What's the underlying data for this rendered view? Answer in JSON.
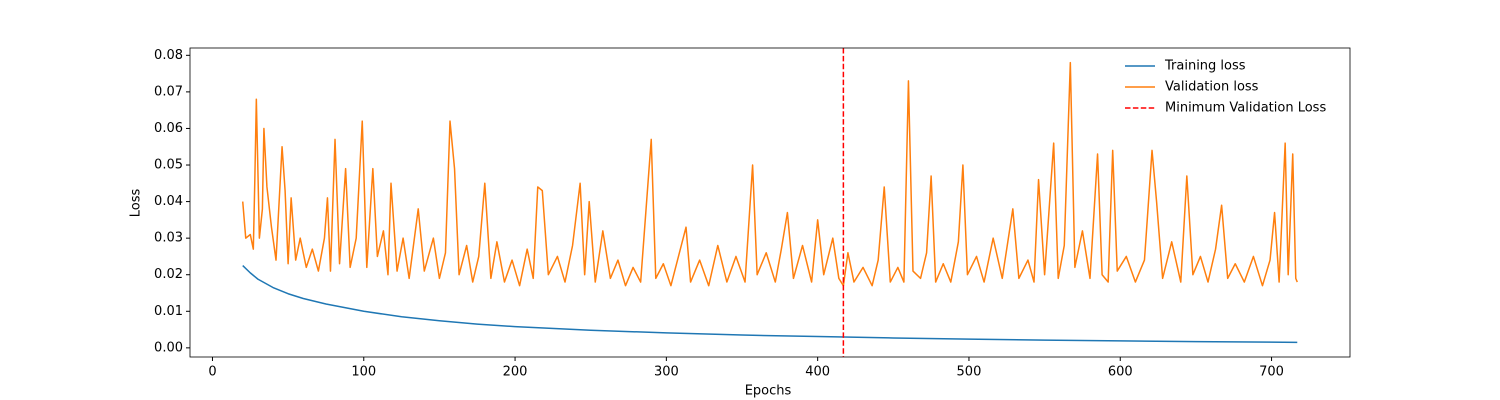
{
  "chart_data": {
    "type": "line",
    "xlabel": "Epochs",
    "ylabel": "Loss",
    "xlim": [
      -14.85,
      751.85
    ],
    "ylim": [
      -0.0025,
      0.082
    ],
    "xticks": [
      0,
      100,
      200,
      300,
      400,
      500,
      600,
      700
    ],
    "yticks": [
      {
        "value": 0,
        "label": "0.00"
      },
      0.01,
      0.02,
      0.03,
      0.04,
      0.05,
      0.06,
      0.07,
      0.08
    ],
    "legend": "upper right",
    "series": [
      {
        "name": "Training loss",
        "color": "#1f77b4",
        "x": [
          20,
          25,
          30,
          40,
          50,
          60,
          75,
          100,
          125,
          150,
          175,
          200,
          250,
          300,
          350,
          400,
          450,
          500,
          550,
          600,
          650,
          717
        ],
        "values": [
          0.0225,
          0.0205,
          0.0188,
          0.0165,
          0.0148,
          0.0135,
          0.012,
          0.01,
          0.0085,
          0.0074,
          0.0065,
          0.0058,
          0.0048,
          0.0041,
          0.0035,
          0.0031,
          0.0027,
          0.0024,
          0.0021,
          0.0019,
          0.0017,
          0.0015
        ]
      },
      {
        "name": "Validation loss",
        "color": "#ff7f0e",
        "x": [
          20,
          22,
          25,
          27,
          28,
          29,
          31,
          33,
          34,
          36,
          39,
          42,
          46,
          48,
          50,
          52,
          55,
          58,
          62,
          66,
          70,
          74,
          76,
          78,
          81,
          84,
          88,
          91,
          95,
          99,
          102,
          106,
          109,
          113,
          116,
          118,
          122,
          126,
          130,
          136,
          140,
          146,
          150,
          154,
          157,
          160,
          163,
          168,
          172,
          176,
          180,
          184,
          188,
          193,
          198,
          203,
          208,
          212,
          215,
          218,
          222,
          228,
          233,
          238,
          243,
          246,
          249,
          253,
          258,
          263,
          268,
          273,
          278,
          283,
          290,
          293,
          298,
          303,
          308,
          313,
          316,
          322,
          328,
          334,
          340,
          346,
          352,
          357,
          360,
          366,
          372,
          376,
          380,
          384,
          390,
          396,
          400,
          404,
          410,
          414,
          417,
          420,
          424,
          430,
          436,
          440,
          444,
          448,
          453,
          457,
          460,
          463,
          468,
          472,
          475,
          478,
          483,
          488,
          493,
          496,
          499,
          505,
          510,
          516,
          522,
          529,
          533,
          539,
          543,
          546,
          550,
          556,
          559,
          563,
          567,
          570,
          575,
          580,
          585,
          588,
          592,
          595,
          598,
          604,
          610,
          616,
          621,
          624,
          628,
          634,
          640,
          644,
          648,
          653,
          658,
          663,
          667,
          671,
          676,
          682,
          688,
          694,
          699,
          702,
          705,
          709,
          711,
          714,
          716,
          717
        ],
        "values": [
          0.04,
          0.03,
          0.031,
          0.027,
          0.046,
          0.068,
          0.03,
          0.038,
          0.06,
          0.044,
          0.033,
          0.024,
          0.055,
          0.043,
          0.023,
          0.041,
          0.024,
          0.03,
          0.022,
          0.027,
          0.021,
          0.03,
          0.041,
          0.021,
          0.057,
          0.023,
          0.049,
          0.022,
          0.03,
          0.062,
          0.022,
          0.049,
          0.025,
          0.032,
          0.02,
          0.045,
          0.021,
          0.03,
          0.019,
          0.038,
          0.021,
          0.03,
          0.019,
          0.026,
          0.062,
          0.049,
          0.02,
          0.028,
          0.018,
          0.025,
          0.045,
          0.019,
          0.029,
          0.018,
          0.024,
          0.017,
          0.027,
          0.019,
          0.044,
          0.043,
          0.02,
          0.025,
          0.018,
          0.028,
          0.045,
          0.02,
          0.04,
          0.018,
          0.032,
          0.019,
          0.024,
          0.017,
          0.022,
          0.018,
          0.057,
          0.019,
          0.023,
          0.017,
          0.025,
          0.033,
          0.018,
          0.024,
          0.017,
          0.028,
          0.018,
          0.025,
          0.018,
          0.05,
          0.02,
          0.026,
          0.018,
          0.027,
          0.037,
          0.019,
          0.028,
          0.018,
          0.035,
          0.02,
          0.03,
          0.019,
          0.017,
          0.026,
          0.018,
          0.022,
          0.017,
          0.024,
          0.044,
          0.018,
          0.022,
          0.018,
          0.073,
          0.021,
          0.019,
          0.026,
          0.047,
          0.018,
          0.023,
          0.018,
          0.029,
          0.05,
          0.02,
          0.025,
          0.018,
          0.03,
          0.019,
          0.038,
          0.019,
          0.024,
          0.018,
          0.046,
          0.02,
          0.056,
          0.019,
          0.028,
          0.078,
          0.022,
          0.032,
          0.019,
          0.053,
          0.02,
          0.018,
          0.054,
          0.021,
          0.025,
          0.018,
          0.024,
          0.054,
          0.04,
          0.019,
          0.029,
          0.018,
          0.047,
          0.02,
          0.025,
          0.018,
          0.027,
          0.039,
          0.019,
          0.023,
          0.018,
          0.025,
          0.017,
          0.024,
          0.037,
          0.018,
          0.056,
          0.02,
          0.053,
          0.019,
          0.018
        ]
      }
    ],
    "vline": {
      "name": "Minimum Validation Loss",
      "x": 417,
      "color": "#ff0000",
      "dash": "dashed"
    }
  }
}
